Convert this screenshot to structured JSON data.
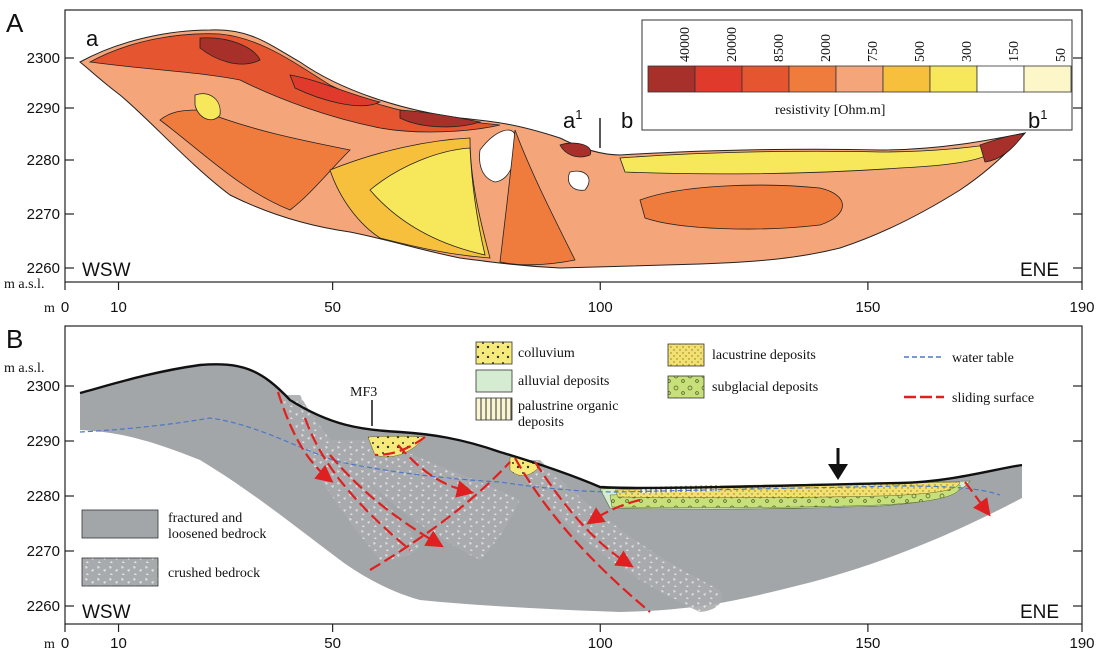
{
  "panel_a": {
    "label": "A",
    "profile_start": "a",
    "profile_mid_end": "a",
    "profile_mid_end_sup": "1",
    "profile_mid_start": "b",
    "profile_end": "b",
    "profile_end_sup": "1",
    "left_dir": "WSW",
    "right_dir": "ENE",
    "y_unit": "m a.s.l.",
    "x_unit": "m",
    "y_ticks": [
      "2300",
      "2290",
      "2280",
      "2270",
      "2260"
    ],
    "x_ticks": [
      "0",
      "10",
      "50",
      "100",
      "150",
      "190"
    ],
    "legend": {
      "title": "resistivity [Ohm.m]",
      "bins": [
        {
          "label": "40000",
          "color": "#a8302a"
        },
        {
          "label": "20000",
          "color": "#e03a2c"
        },
        {
          "label": "8500",
          "color": "#e5552f"
        },
        {
          "label": "2000",
          "color": "#ef7b3c"
        },
        {
          "label": "750",
          "color": "#f5a57a"
        },
        {
          "label": "500",
          "color": "#f6bf3c"
        },
        {
          "label": "300",
          "color": "#f6e85a"
        },
        {
          "label": "150",
          "color": "#ffffff"
        },
        {
          "label": "50",
          "color": "#fdf6c8"
        }
      ]
    }
  },
  "panel_b": {
    "label": "B",
    "left_dir": "WSW",
    "right_dir": "ENE",
    "y_unit": "m a.s.l.",
    "x_unit": "m",
    "y_ticks": [
      "2300",
      "2290",
      "2280",
      "2270",
      "2260"
    ],
    "x_ticks": [
      "0",
      "10",
      "50",
      "100",
      "150",
      "190"
    ],
    "fault_label": "MF3",
    "legend_items": [
      {
        "label": "colluvium",
        "color": "#f6ea7a"
      },
      {
        "label": "alluvial deposits",
        "color": "#d6ecd2"
      },
      {
        "label_1": "palustrine organic",
        "label_2": "deposits",
        "color": "#f8f3c8"
      },
      {
        "label": "lacustrine deposits",
        "color": "#f2e070"
      },
      {
        "label": "subglacial deposits",
        "color": "#c8e07a"
      },
      {
        "label": "water table",
        "color": "#4a78c8"
      },
      {
        "label": "sliding surface",
        "color": "#e02020"
      }
    ],
    "bedrock_legend": [
      {
        "label_1": "fractured and",
        "label_2": "loosened bedrock",
        "color": "#a3a6a8"
      },
      {
        "label": "crushed bedrock",
        "color": "#b4b6b8"
      }
    ]
  }
}
